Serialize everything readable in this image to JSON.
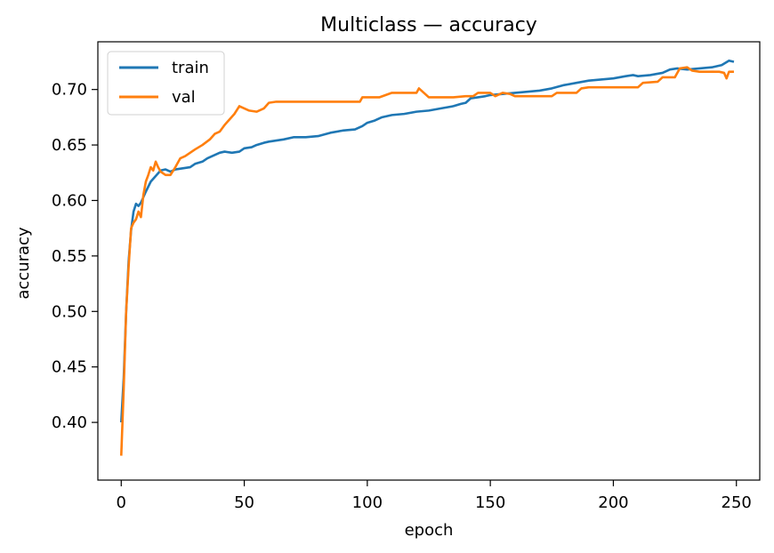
{
  "chart_data": {
    "type": "line",
    "title": "Multiclass — accuracy",
    "xlabel": "epoch",
    "ylabel": "accuracy",
    "xlim": [
      -9.5,
      259.5
    ],
    "ylim": [
      0.348,
      0.743
    ],
    "xticks": [
      0,
      50,
      100,
      150,
      200,
      250
    ],
    "yticks": [
      0.4,
      0.45,
      0.5,
      0.55,
      0.6,
      0.65,
      0.7
    ],
    "ytick_labels": [
      "0.40",
      "0.45",
      "0.50",
      "0.55",
      "0.60",
      "0.65",
      "0.70"
    ],
    "xtick_labels": [
      "0",
      "50",
      "100",
      "150",
      "200",
      "250"
    ],
    "grid": false,
    "legend_position": "top-left",
    "series": [
      {
        "name": "train",
        "color": "#1f77b4",
        "points": [
          [
            0,
            0.4
          ],
          [
            1,
            0.44
          ],
          [
            2,
            0.5
          ],
          [
            3,
            0.545
          ],
          [
            4,
            0.573
          ],
          [
            5,
            0.59
          ],
          [
            6,
            0.597
          ],
          [
            7,
            0.595
          ],
          [
            8,
            0.598
          ],
          [
            10,
            0.608
          ],
          [
            12,
            0.617
          ],
          [
            14,
            0.622
          ],
          [
            16,
            0.627
          ],
          [
            18,
            0.628
          ],
          [
            20,
            0.626
          ],
          [
            22,
            0.628
          ],
          [
            25,
            0.629
          ],
          [
            28,
            0.63
          ],
          [
            30,
            0.633
          ],
          [
            33,
            0.635
          ],
          [
            35,
            0.638
          ],
          [
            38,
            0.641
          ],
          [
            40,
            0.643
          ],
          [
            42,
            0.644
          ],
          [
            45,
            0.643
          ],
          [
            48,
            0.644
          ],
          [
            50,
            0.647
          ],
          [
            53,
            0.648
          ],
          [
            55,
            0.65
          ],
          [
            58,
            0.652
          ],
          [
            60,
            0.653
          ],
          [
            63,
            0.654
          ],
          [
            66,
            0.655
          ],
          [
            70,
            0.657
          ],
          [
            75,
            0.657
          ],
          [
            80,
            0.658
          ],
          [
            85,
            0.661
          ],
          [
            90,
            0.663
          ],
          [
            95,
            0.664
          ],
          [
            98,
            0.667
          ],
          [
            100,
            0.67
          ],
          [
            103,
            0.672
          ],
          [
            106,
            0.675
          ],
          [
            110,
            0.677
          ],
          [
            115,
            0.678
          ],
          [
            120,
            0.68
          ],
          [
            125,
            0.681
          ],
          [
            130,
            0.683
          ],
          [
            135,
            0.685
          ],
          [
            138,
            0.687
          ],
          [
            140,
            0.688
          ],
          [
            142,
            0.692
          ],
          [
            145,
            0.693
          ],
          [
            148,
            0.694
          ],
          [
            150,
            0.695
          ],
          [
            155,
            0.696
          ],
          [
            160,
            0.697
          ],
          [
            165,
            0.698
          ],
          [
            170,
            0.699
          ],
          [
            175,
            0.701
          ],
          [
            180,
            0.704
          ],
          [
            185,
            0.706
          ],
          [
            190,
            0.708
          ],
          [
            195,
            0.709
          ],
          [
            200,
            0.71
          ],
          [
            205,
            0.712
          ],
          [
            208,
            0.713
          ],
          [
            210,
            0.712
          ],
          [
            215,
            0.713
          ],
          [
            220,
            0.715
          ],
          [
            223,
            0.718
          ],
          [
            226,
            0.719
          ],
          [
            230,
            0.718
          ],
          [
            235,
            0.719
          ],
          [
            240,
            0.72
          ],
          [
            244,
            0.722
          ],
          [
            247,
            0.726
          ],
          [
            249,
            0.725
          ]
        ]
      },
      {
        "name": "val",
        "color": "#ff7f0e",
        "points": [
          [
            0,
            0.37
          ],
          [
            1,
            0.43
          ],
          [
            2,
            0.5
          ],
          [
            3,
            0.54
          ],
          [
            4,
            0.575
          ],
          [
            5,
            0.58
          ],
          [
            6,
            0.583
          ],
          [
            7,
            0.59
          ],
          [
            8,
            0.585
          ],
          [
            9,
            0.605
          ],
          [
            10,
            0.617
          ],
          [
            11,
            0.623
          ],
          [
            12,
            0.63
          ],
          [
            13,
            0.627
          ],
          [
            14,
            0.635
          ],
          [
            15,
            0.63
          ],
          [
            16,
            0.626
          ],
          [
            18,
            0.623
          ],
          [
            20,
            0.623
          ],
          [
            22,
            0.63
          ],
          [
            24,
            0.638
          ],
          [
            26,
            0.64
          ],
          [
            28,
            0.643
          ],
          [
            30,
            0.646
          ],
          [
            33,
            0.65
          ],
          [
            36,
            0.655
          ],
          [
            38,
            0.66
          ],
          [
            40,
            0.662
          ],
          [
            42,
            0.668
          ],
          [
            44,
            0.673
          ],
          [
            46,
            0.678
          ],
          [
            48,
            0.685
          ],
          [
            50,
            0.683
          ],
          [
            52,
            0.681
          ],
          [
            55,
            0.68
          ],
          [
            58,
            0.683
          ],
          [
            60,
            0.688
          ],
          [
            63,
            0.689
          ],
          [
            70,
            0.689
          ],
          [
            80,
            0.689
          ],
          [
            90,
            0.689
          ],
          [
            97,
            0.689
          ],
          [
            98,
            0.693
          ],
          [
            105,
            0.693
          ],
          [
            110,
            0.697
          ],
          [
            115,
            0.697
          ],
          [
            120,
            0.697
          ],
          [
            121,
            0.701
          ],
          [
            123,
            0.697
          ],
          [
            125,
            0.693
          ],
          [
            130,
            0.693
          ],
          [
            135,
            0.693
          ],
          [
            140,
            0.694
          ],
          [
            143,
            0.694
          ],
          [
            145,
            0.697
          ],
          [
            150,
            0.697
          ],
          [
            152,
            0.694
          ],
          [
            155,
            0.697
          ],
          [
            158,
            0.696
          ],
          [
            160,
            0.694
          ],
          [
            165,
            0.694
          ],
          [
            170,
            0.694
          ],
          [
            175,
            0.694
          ],
          [
            177,
            0.697
          ],
          [
            180,
            0.697
          ],
          [
            185,
            0.697
          ],
          [
            187,
            0.701
          ],
          [
            190,
            0.702
          ],
          [
            200,
            0.702
          ],
          [
            205,
            0.702
          ],
          [
            210,
            0.702
          ],
          [
            212,
            0.706
          ],
          [
            218,
            0.707
          ],
          [
            220,
            0.711
          ],
          [
            225,
            0.711
          ],
          [
            227,
            0.719
          ],
          [
            230,
            0.72
          ],
          [
            232,
            0.717
          ],
          [
            235,
            0.716
          ],
          [
            240,
            0.716
          ],
          [
            243,
            0.716
          ],
          [
            245,
            0.715
          ],
          [
            246,
            0.71
          ],
          [
            247,
            0.716
          ],
          [
            249,
            0.716
          ]
        ]
      }
    ]
  }
}
